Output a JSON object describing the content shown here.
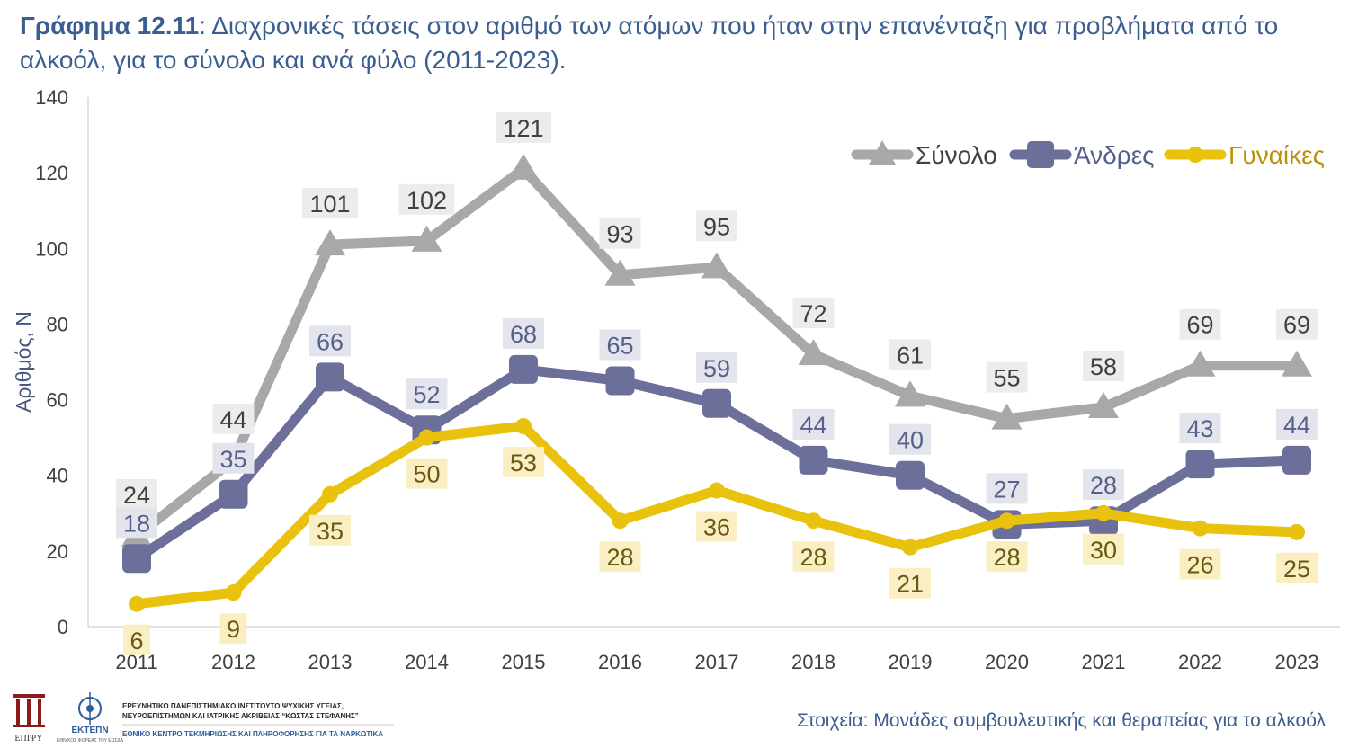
{
  "title": {
    "bold": "Γράφημα 12.11",
    "rest": ": Διαχρονικές τάσεις στον αριθμό των ατόμων που ήταν στην επανένταξη για προβλήματα από το αλκοόλ, για το σύνολο και ανά φύλο (2011-2023)."
  },
  "chart_data": {
    "type": "line",
    "categories": [
      "2011",
      "2012",
      "2013",
      "2014",
      "2015",
      "2016",
      "2017",
      "2018",
      "2019",
      "2020",
      "2021",
      "2022",
      "2023"
    ],
    "ylabel": "Αριθμός, Ν",
    "ylim": [
      0,
      140
    ],
    "yticks": [
      0,
      20,
      40,
      60,
      80,
      100,
      120,
      140
    ],
    "grid": false,
    "legend_position": "top-right",
    "series": [
      {
        "name": "Σύνολο",
        "color": "#a6a8aa",
        "marker": "triangle",
        "values": [
          24,
          44,
          101,
          102,
          121,
          93,
          95,
          72,
          61,
          55,
          58,
          69,
          69
        ]
      },
      {
        "name": "Άνδρες",
        "color": "#6b6f9a",
        "marker": "square",
        "values": [
          18,
          35,
          66,
          52,
          68,
          65,
          59,
          44,
          40,
          27,
          28,
          43,
          44
        ]
      },
      {
        "name": "Γυναίκες",
        "color": "#e9c20e",
        "marker": "circle",
        "values": [
          6,
          9,
          35,
          50,
          53,
          28,
          36,
          28,
          21,
          28,
          30,
          26,
          25
        ]
      }
    ]
  },
  "footer": {
    "logo_epipsy": "ΕΠΙΨΥ",
    "logo_ektepn": "ΕΚΤΕΠΝ",
    "logo_ektepn_sub": "ΕΘΝΙΚΟΣ ΦΟΡΕΑΣ ΤΟΥ ΕΩΣΔΑ",
    "institute_line1": "ΕΡΕΥΝΗΤΙΚΟ ΠΑΝΕΠΙΣΤΗΜΙΑΚΟ ΙΝΣΤΙΤΟΥΤΟ ΨΥΧΙΚΗΣ ΥΓΕΙΑΣ,",
    "institute_line2": "ΝΕΥΡΟΕΠΙΣΤΗΜΩΝ ΚΑΙ ΙΑΤΡΙΚΗΣ ΑΚΡΙΒΕΙΑΣ “ΚΩΣΤΑΣ ΣΤΕΦΑΝΗΣ”",
    "ektepn_line": "ΕΘΝΙΚΟ ΚΕΝΤΡΟ ΤΕΚΜΗΡΙΩΣΗΣ ΚΑΙ ΠΛΗΡΟΦΟΡΗΣΗΣ ΓΙΑ ΤΑ ΝΑΡΚΩΤΙΚΑ",
    "source": "Στοιχεία: Μονάδες συμβουλευτικής και θεραπείας για το αλκοόλ"
  }
}
